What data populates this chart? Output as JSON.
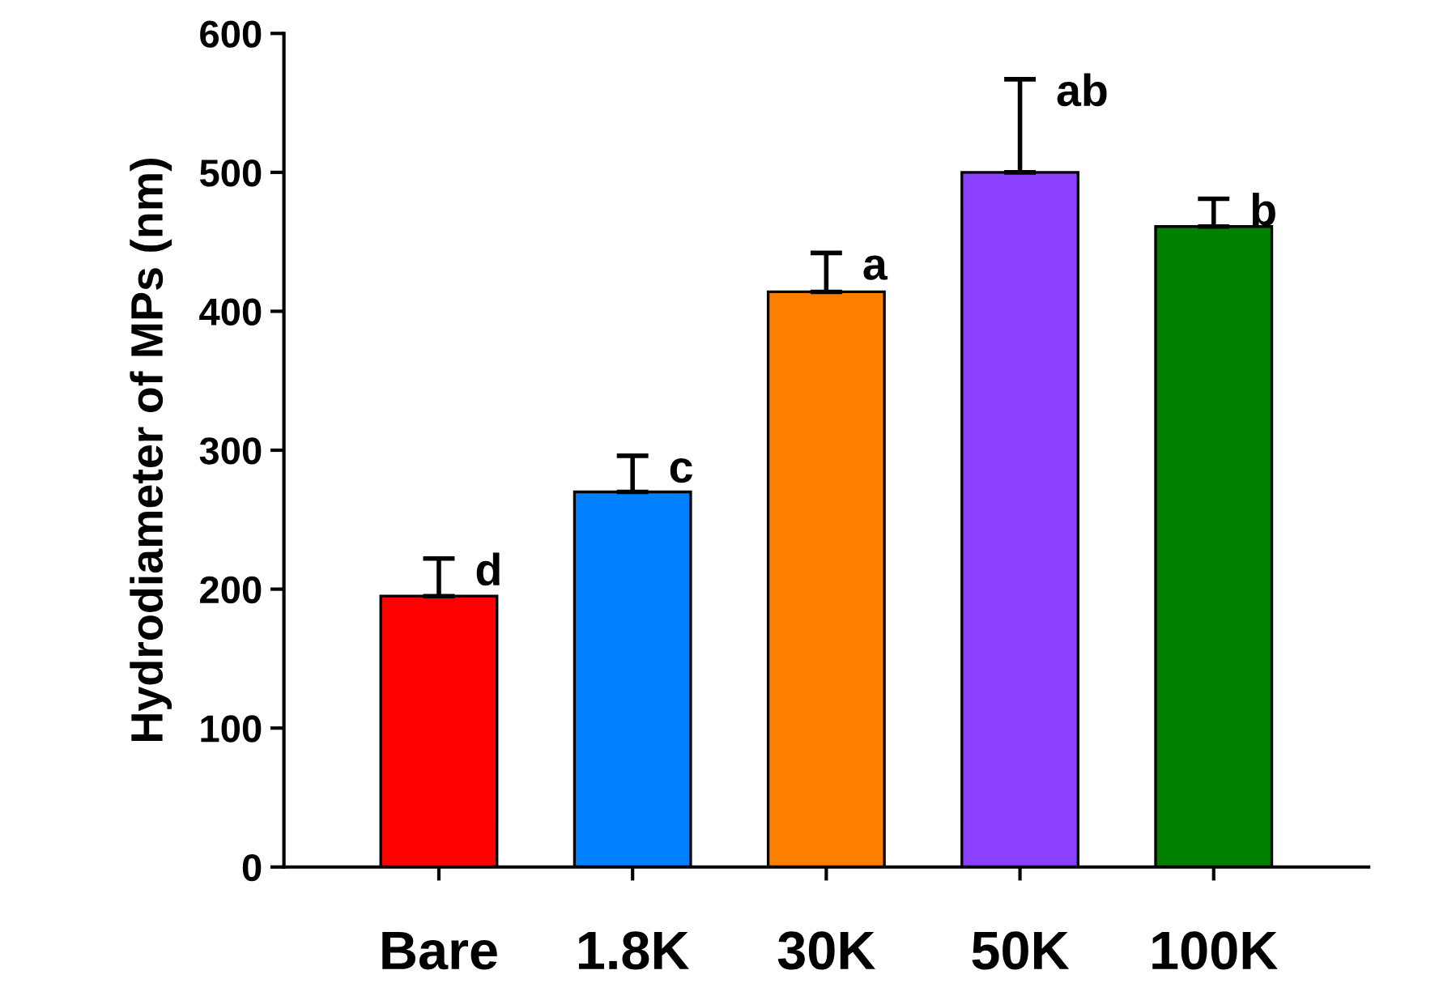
{
  "chart_data": {
    "type": "bar",
    "ylabel": "Hydrodiameter of MPs (nm)",
    "categories": [
      "Bare",
      "1.8K",
      "30K",
      "50K",
      "100K"
    ],
    "values": [
      195,
      270,
      414,
      500,
      461
    ],
    "colors": [
      "#ff0000",
      "#0080ff",
      "#ff8000",
      "#8c40ff",
      "#008000"
    ],
    "errors": [
      [
        195,
        222
      ],
      [
        270,
        296
      ],
      [
        414,
        442
      ],
      [
        500,
        567
      ],
      [
        461,
        481
      ]
    ],
    "ylim": [
      0,
      600
    ],
    "yticks": [
      0,
      100,
      200,
      300,
      400,
      500,
      600
    ],
    "annotations": [
      "d",
      "c",
      "a",
      "ab",
      "b"
    ]
  }
}
